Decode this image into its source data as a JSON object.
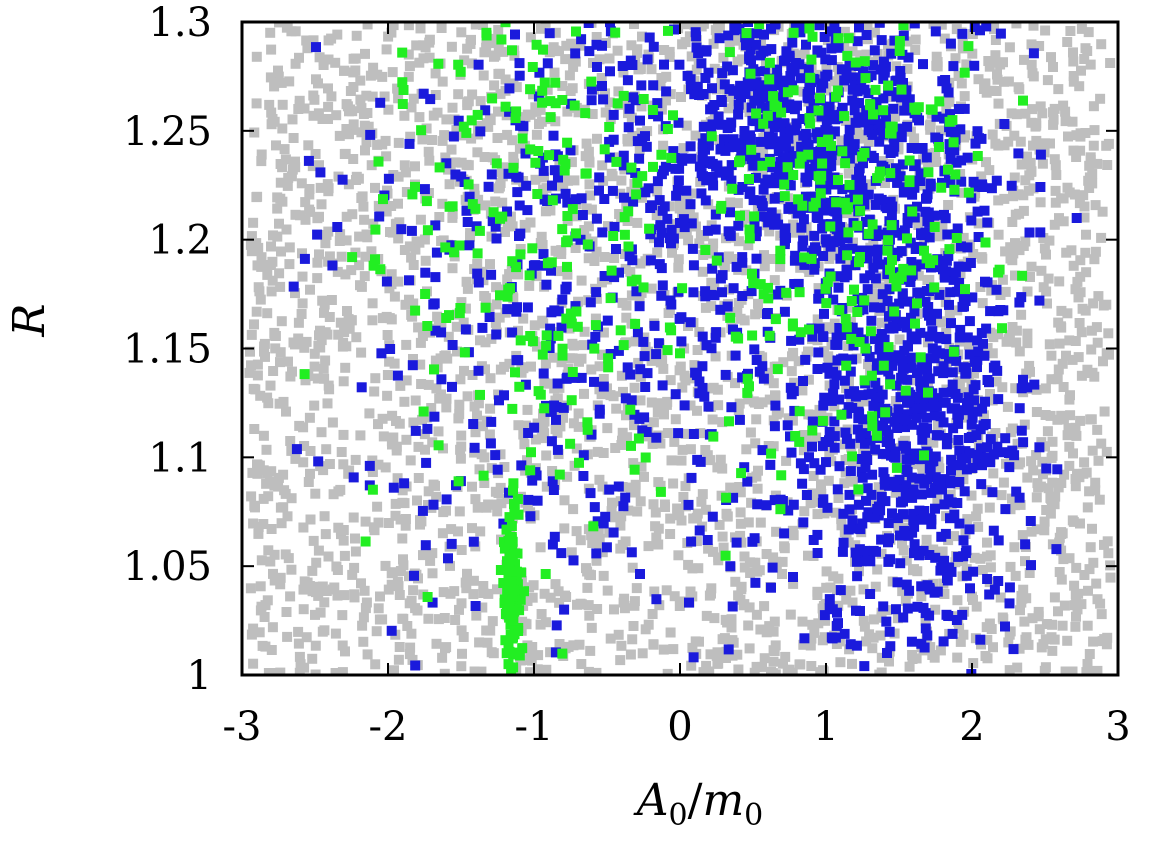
{
  "chart_data": {
    "type": "scatter",
    "title": "",
    "xlabel": "A0/m0",
    "xlabel_parts": {
      "a": "A",
      "a_sub": "0",
      "sep": "/",
      "m": "m",
      "m_sub": "0"
    },
    "ylabel": "R",
    "xlim": [
      -3,
      3
    ],
    "ylim": [
      1.0,
      1.3
    ],
    "xticks": [
      -3,
      -2,
      -1,
      0,
      1,
      2,
      3
    ],
    "xtick_labels": [
      "-3",
      "-2",
      "-1",
      "0",
      "1",
      "2",
      "3"
    ],
    "yticks": [
      1.0,
      1.05,
      1.1,
      1.15,
      1.2,
      1.25,
      1.3
    ],
    "ytick_labels": [
      "1",
      "1.05",
      "1.1",
      "1.15",
      "1.2",
      "1.25",
      "1.3"
    ],
    "grid": false,
    "legend": "none",
    "marker": "square",
    "series": [
      {
        "color": "#bebebe",
        "description_points": "dense band covering A0/m0 from about -2.9 to 2.9 over full R range",
        "x_range": [
          -2.95,
          2.95
        ],
        "y_range": [
          1.0,
          1.3
        ],
        "approx_count": 3000
      },
      {
        "color": "#1a1adc",
        "x_range": [
          -2.8,
          2.8
        ],
        "y_range": [
          1.0,
          1.3
        ],
        "approx_count": 1900,
        "clusters": [
          {
            "x": 0.9,
            "y": 1.25,
            "sx": 0.55,
            "sy": 0.04,
            "w": 0.35
          },
          {
            "x": 1.6,
            "y": 1.12,
            "sx": 0.35,
            "sy": 0.06,
            "w": 0.35
          },
          {
            "x": -0.3,
            "y": 1.18,
            "sx": 1.0,
            "sy": 0.09,
            "w": 0.3
          }
        ]
      },
      {
        "color": "#22ee22",
        "x_range": [
          -2.8,
          2.6
        ],
        "y_range": [
          1.0,
          1.3
        ],
        "approx_count": 520,
        "clusters": [
          {
            "x": -1.0,
            "y": 1.2,
            "sx": 0.55,
            "sy": 0.07,
            "w": 0.4
          },
          {
            "x": 1.1,
            "y": 1.22,
            "sx": 0.5,
            "sy": 0.06,
            "w": 0.45
          },
          {
            "x": -1.15,
            "y": 1.04,
            "sx": 0.03,
            "sy": 0.02,
            "w": 0.15
          }
        ]
      }
    ]
  }
}
